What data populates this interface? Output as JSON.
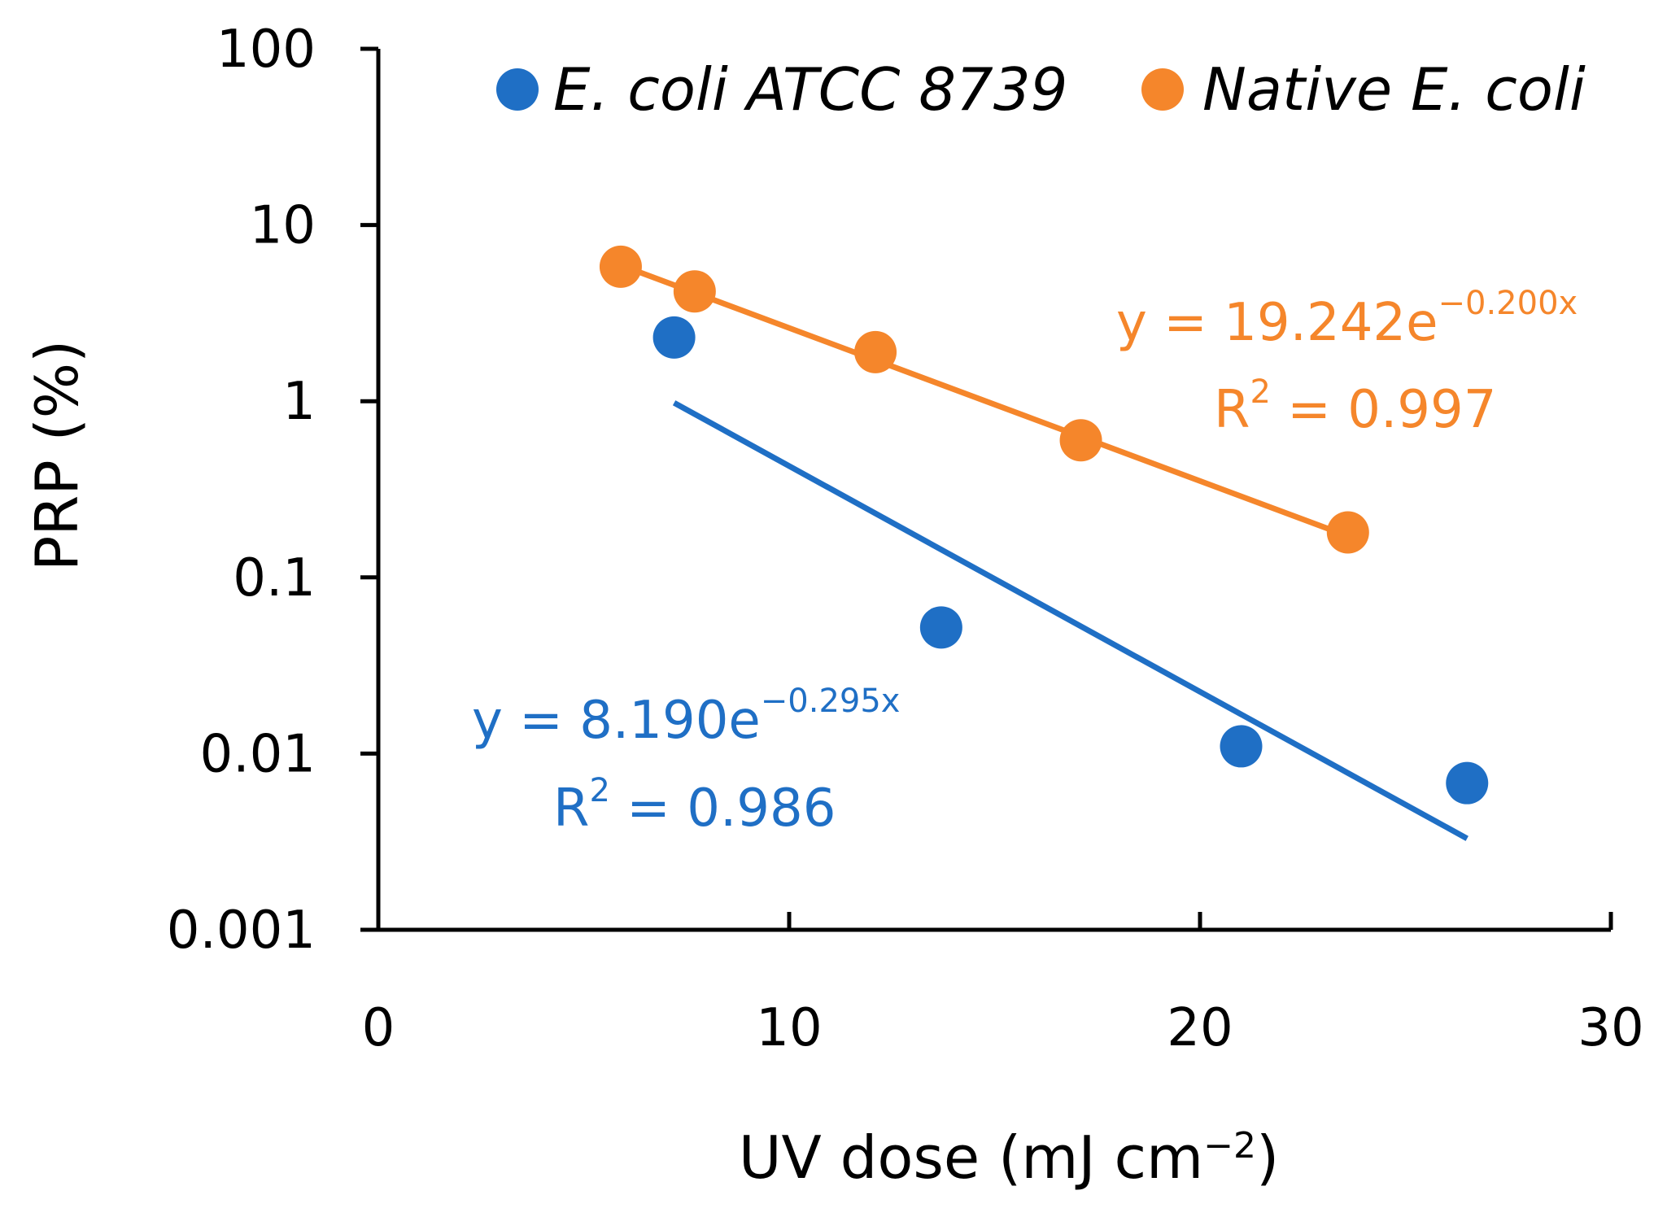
{
  "chart_data": {
    "type": "scatter",
    "xlabel": "UV dose (mJ cm",
    "xlabel_sup": "−2",
    "xlabel_end": ")",
    "ylabel": "PRP (%)",
    "xlim": [
      0,
      30
    ],
    "ylim": [
      0.001,
      100
    ],
    "yscale": "log",
    "x_ticks": [
      0,
      10,
      20,
      30
    ],
    "x_tick_labels": [
      "0",
      "10",
      "20",
      "30"
    ],
    "y_ticks": [
      0.001,
      0.01,
      0.1,
      1,
      10,
      100
    ],
    "y_tick_labels": [
      "0.001",
      "0.01",
      "0.1",
      "1",
      "10",
      "100"
    ],
    "grid": false,
    "legend_position": "top",
    "series": [
      {
        "name": "E. coli ATCC 8739",
        "color": "#1f6fc5",
        "x": [
          7.2,
          13.7,
          21.0,
          26.5
        ],
        "y": [
          2.3,
          0.052,
          0.011,
          0.0068
        ],
        "fit": {
          "equation": "y = 8.190e",
          "exponent": "−0.295x",
          "r2_prefix": "R",
          "r2_sup": "2",
          "r2_value": " = 0.986",
          "x_range": [
            7.2,
            26.5
          ],
          "coef": 8.19,
          "rate": -0.295
        }
      },
      {
        "name": "Native E. coli",
        "color": "#f5862b",
        "x": [
          5.9,
          7.7,
          12.1,
          17.1,
          23.6
        ],
        "y": [
          5.8,
          4.2,
          1.9,
          0.6,
          0.18
        ],
        "fit": {
          "equation": "y = 19.242e",
          "exponent": "−0.200x",
          "r2_prefix": "R",
          "r2_sup": "2",
          "r2_value": " = 0.997",
          "x_range": [
            5.9,
            23.6
          ],
          "coef": 19.242,
          "rate": -0.2
        }
      }
    ]
  }
}
